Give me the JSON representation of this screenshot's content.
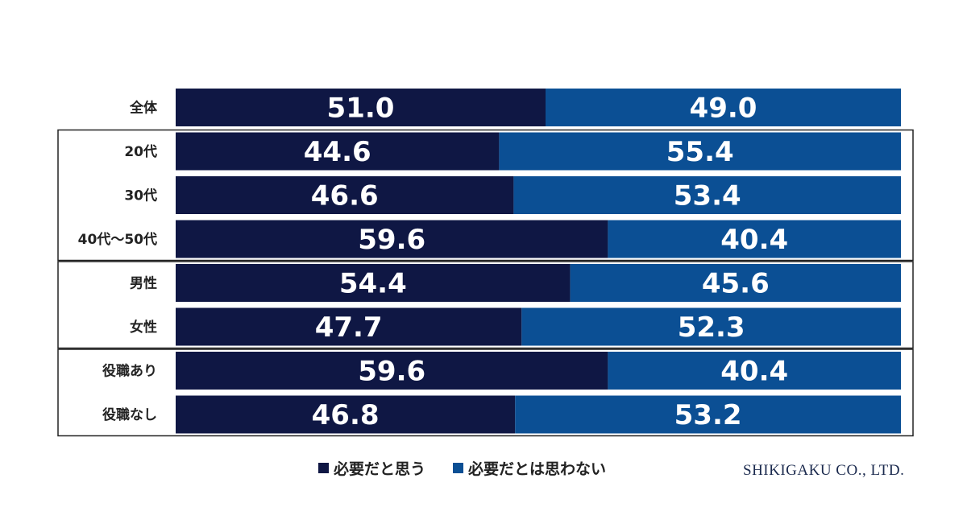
{
  "chart_data": {
    "type": "bar",
    "orientation": "horizontal",
    "stacked": true,
    "percent": true,
    "categories": [
      "全体",
      "20代",
      "30代",
      "40代～50代",
      "男性",
      "女性",
      "役職あり",
      "役職なし"
    ],
    "series": [
      {
        "name": "必要だと思う",
        "values": [
          51.0,
          44.6,
          46.6,
          59.6,
          54.4,
          47.7,
          59.6,
          46.8
        ],
        "color": "#0f1744"
      },
      {
        "name": "必要だとは思わない",
        "values": [
          49.0,
          55.4,
          53.4,
          40.4,
          45.6,
          52.3,
          40.4,
          53.2
        ],
        "color": "#0b4f94"
      }
    ],
    "groups": [
      [
        0
      ],
      [
        1,
        2,
        3
      ],
      [
        4,
        5
      ],
      [
        6,
        7
      ]
    ],
    "xlim": [
      0,
      100
    ],
    "legend_position": "bottom",
    "grid": false
  },
  "credit": "SHIKIGAKU CO., LTD."
}
